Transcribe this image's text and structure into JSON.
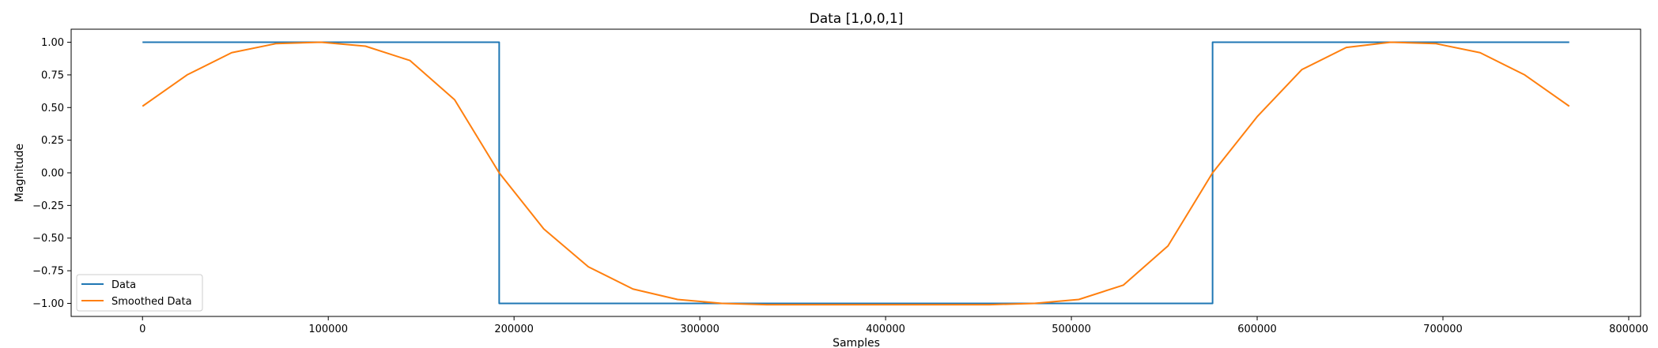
{
  "chart_data": {
    "type": "line",
    "title": "Data [1,0,0,1]",
    "xlabel": "Samples",
    "ylabel": "Magnitude",
    "xlim": [
      -38400,
      806400
    ],
    "ylim": [
      -1.1,
      1.1
    ],
    "xticks": [
      0,
      100000,
      200000,
      300000,
      400000,
      500000,
      600000,
      700000,
      800000
    ],
    "xtick_labels": [
      "0",
      "100000",
      "200000",
      "300000",
      "400000",
      "500000",
      "600000",
      "700000",
      "800000"
    ],
    "yticks": [
      1.0,
      0.75,
      0.5,
      0.25,
      0.0,
      -0.25,
      -0.5,
      -0.75,
      -1.0
    ],
    "ytick_labels": [
      "1.00",
      "0.75",
      "0.50",
      "0.25",
      "0.00",
      "−0.25",
      "−0.50",
      "−0.75",
      "−1.00"
    ],
    "grid": false,
    "legend_position": "lower-left",
    "series": [
      {
        "name": "Data",
        "color": "#1f77b4",
        "x": [
          0,
          192000,
          192000,
          576000,
          576000,
          768000
        ],
        "y": [
          1,
          1,
          -1,
          -1,
          1,
          1
        ]
      },
      {
        "name": "Smoothed Data",
        "color": "#ff7f0e",
        "x": [
          0,
          24000,
          48000,
          72000,
          96000,
          120000,
          144000,
          168000,
          192000,
          216000,
          240000,
          264000,
          288000,
          312000,
          336000,
          360000,
          384000,
          408000,
          432000,
          456000,
          480000,
          504000,
          528000,
          552000,
          576000,
          600000,
          624000,
          648000,
          672000,
          696000,
          720000,
          744000,
          768000
        ],
        "y": [
          0.51,
          0.75,
          0.92,
          0.99,
          1.0,
          0.97,
          0.86,
          0.56,
          0.0,
          -0.43,
          -0.72,
          -0.89,
          -0.97,
          -1.0,
          -1.01,
          -1.01,
          -1.01,
          -1.01,
          -1.01,
          -1.01,
          -1.0,
          -0.97,
          -0.86,
          -0.56,
          0.0,
          0.43,
          0.79,
          0.96,
          1.0,
          0.99,
          0.92,
          0.75,
          0.51
        ]
      }
    ]
  }
}
